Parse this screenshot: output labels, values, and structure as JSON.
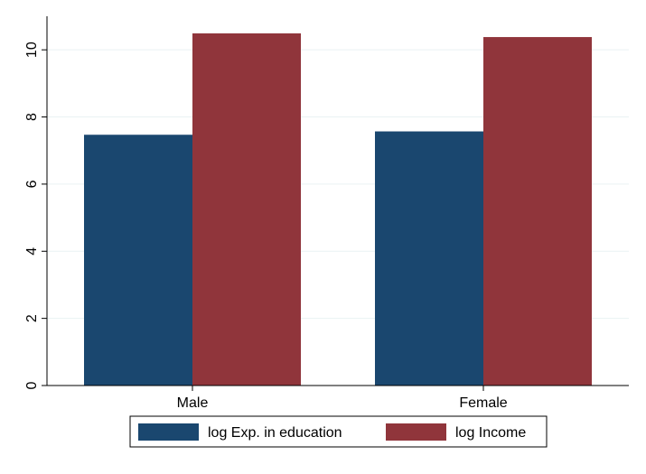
{
  "chart_data": {
    "type": "bar",
    "categories": [
      "Male",
      "Female"
    ],
    "series": [
      {
        "name": "log Exp. in education",
        "values": [
          7.47,
          7.57
        ],
        "color": "#1a476f"
      },
      {
        "name": "log Income",
        "values": [
          10.49,
          10.38
        ],
        "color": "#90353b"
      }
    ],
    "ylim": [
      0,
      11
    ],
    "yticks": [
      0,
      2,
      4,
      6,
      8,
      10
    ],
    "grid": true,
    "legend_position": "bottom",
    "title": "",
    "xlabel": "",
    "ylabel": ""
  }
}
